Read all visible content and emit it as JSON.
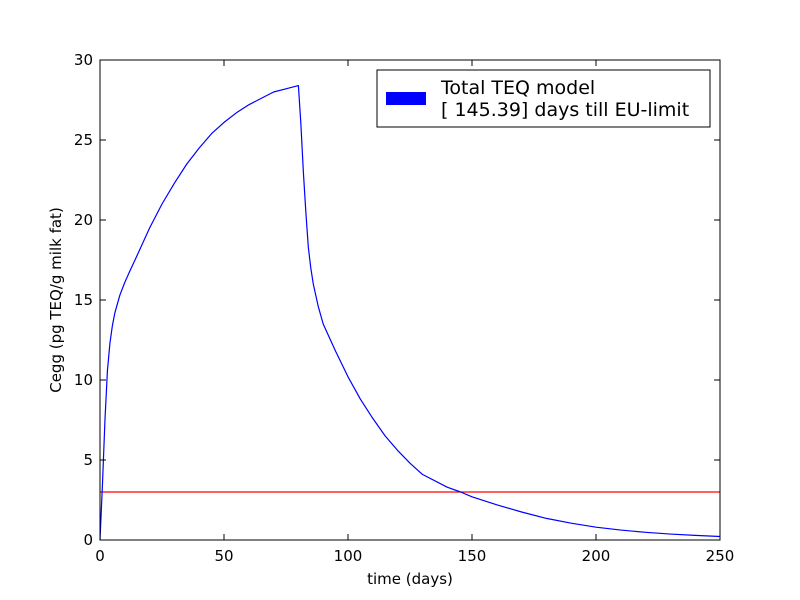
{
  "chart_data": {
    "type": "line",
    "title": "",
    "xlabel": "time (days)",
    "ylabel": "Cegg (pg TEQ/g milk fat)",
    "xlim": [
      0,
      250
    ],
    "ylim": [
      0,
      30
    ],
    "x_ticks": [
      0,
      50,
      100,
      150,
      200,
      250
    ],
    "y_ticks": [
      0,
      5,
      10,
      15,
      20,
      25,
      30
    ],
    "grid": false,
    "legend_placement": "top-right",
    "legend": {
      "line1": "Total TEQ model",
      "line2": "[ 145.39] days till EU-limit"
    },
    "series": [
      {
        "color": "#0000ff",
        "x": [
          0,
          1,
          2,
          3,
          4,
          5,
          6,
          8,
          10,
          12,
          15,
          20,
          25,
          30,
          35,
          40,
          45,
          50,
          55,
          60,
          65,
          70,
          75,
          80,
          81,
          82,
          83,
          84,
          85,
          86,
          88,
          90,
          95,
          100,
          105,
          110,
          115,
          120,
          125,
          130,
          140,
          145.39,
          150,
          160,
          170,
          180,
          190,
          200,
          210,
          220,
          230,
          240,
          250
        ],
        "y": [
          0,
          3.5,
          7.5,
          10.6,
          12.3,
          13.4,
          14.2,
          15.3,
          16.1,
          16.8,
          17.8,
          19.5,
          21.0,
          22.3,
          23.5,
          24.5,
          25.4,
          26.1,
          26.7,
          27.2,
          27.6,
          28.0,
          28.2,
          28.4,
          26.0,
          23.0,
          20.5,
          18.3,
          17.0,
          16.0,
          14.6,
          13.5,
          11.8,
          10.2,
          8.8,
          7.6,
          6.5,
          5.6,
          4.8,
          4.1,
          3.3,
          3.0,
          2.7,
          2.2,
          1.75,
          1.35,
          1.05,
          0.8,
          0.62,
          0.48,
          0.37,
          0.29,
          0.22
        ]
      }
    ],
    "reference_line": {
      "color": "#ff0000",
      "y": 3
    }
  }
}
